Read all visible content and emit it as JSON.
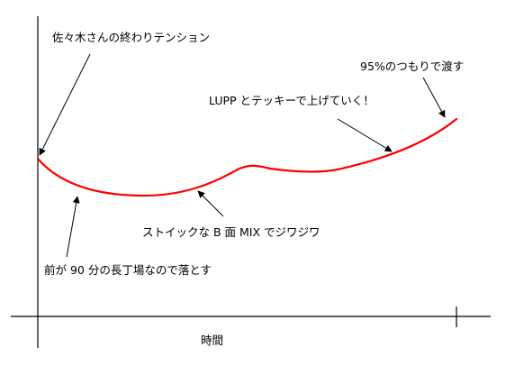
{
  "colors": {
    "curve": "#ff0000",
    "axis": "#000000",
    "background": "#ffffff"
  },
  "axis": {
    "x_label": "時間"
  },
  "annotations": [
    {
      "id": "start",
      "text": "佐々木さんの終わりテンション"
    },
    {
      "id": "b-side",
      "text": "ストイックな B 面 MIX でジワジワ"
    },
    {
      "id": "long-track",
      "text": "前が 90 分の長丁場なので落とす"
    },
    {
      "id": "lupp",
      "text": "LUPP とテッキーで上げていく！"
    },
    {
      "id": "end",
      "text": "95%のつもりで渡す"
    }
  ]
}
